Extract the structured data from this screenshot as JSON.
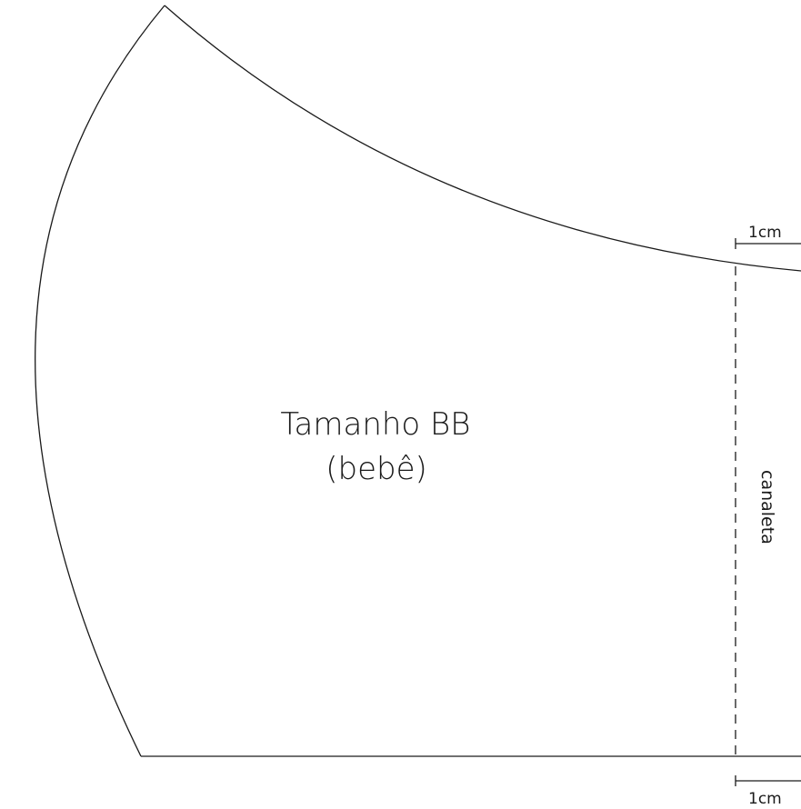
{
  "pattern": {
    "title": "Tamanho BB",
    "subtitle": "(bebê)",
    "fold_label": "canaleta",
    "top_margin_label": "1cm",
    "bottom_margin_label": "1cm"
  }
}
